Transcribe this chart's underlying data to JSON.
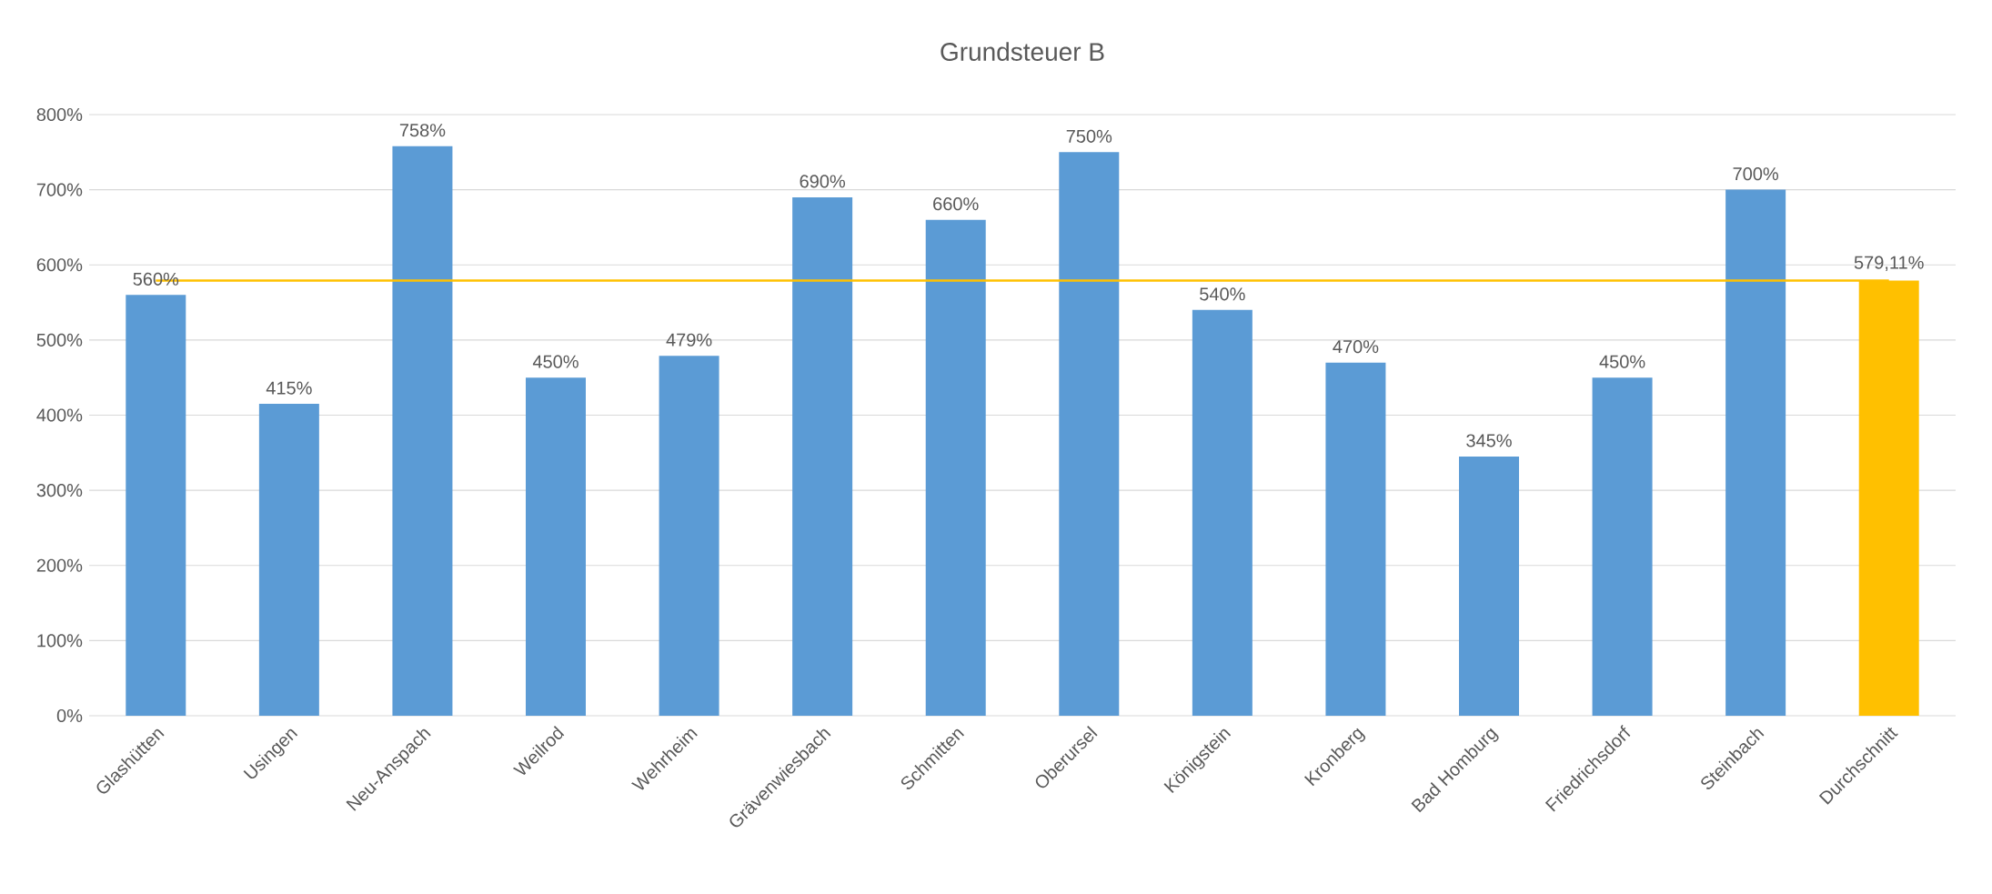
{
  "chart_data": {
    "type": "bar",
    "title": "Grundsteuer B",
    "categories": [
      "Glashütten",
      "Usingen",
      "Neu-Anspach",
      "Weilrod",
      "Wehrheim",
      "Grävenwiesbach",
      "Schmitten",
      "Oberursel",
      "Königstein",
      "Kronberg",
      "Bad Homburg",
      "Friedrichsdorf",
      "Steinbach",
      "Durchschnitt"
    ],
    "values": [
      560,
      415,
      758,
      450,
      479,
      690,
      660,
      750,
      540,
      470,
      345,
      450,
      700,
      579.11
    ],
    "colors": [
      "#5b9bd5",
      "#5b9bd5",
      "#5b9bd5",
      "#5b9bd5",
      "#5b9bd5",
      "#5b9bd5",
      "#5b9bd5",
      "#5b9bd5",
      "#5b9bd5",
      "#5b9bd5",
      "#5b9bd5",
      "#5b9bd5",
      "#5b9bd5",
      "#ffc000"
    ],
    "value_labels": [
      "560%",
      "415%",
      "758%",
      "450%",
      "479%",
      "690%",
      "660%",
      "750%",
      "540%",
      "470%",
      "345%",
      "450%",
      "700%",
      "579,11%"
    ],
    "ylim": [
      0,
      800
    ],
    "yticks": [
      {
        "value": 0,
        "label": "0%"
      },
      {
        "value": 100,
        "label": "100%"
      },
      {
        "value": 200,
        "label": "200%"
      },
      {
        "value": 300,
        "label": "300%"
      },
      {
        "value": 400,
        "label": "400%"
      },
      {
        "value": 500,
        "label": "500%"
      },
      {
        "value": 600,
        "label": "600%"
      },
      {
        "value": 700,
        "label": "700%"
      },
      {
        "value": 800,
        "label": "800%"
      }
    ],
    "grid": "y",
    "ref_lines": [
      {
        "axis": "y",
        "value": 579.11,
        "color": "#ffc000"
      }
    ]
  }
}
